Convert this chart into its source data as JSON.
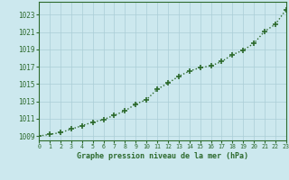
{
  "x": [
    0,
    1,
    2,
    3,
    4,
    5,
    6,
    7,
    8,
    9,
    10,
    11,
    12,
    13,
    14,
    15,
    16,
    17,
    18,
    19,
    20,
    21,
    22,
    23
  ],
  "y": [
    1009.0,
    1009.2,
    1009.4,
    1009.8,
    1010.2,
    1010.6,
    1010.9,
    1011.4,
    1011.9,
    1012.7,
    1013.2,
    1014.4,
    1015.1,
    1015.9,
    1016.5,
    1016.9,
    1017.1,
    1017.6,
    1018.4,
    1018.9,
    1019.7,
    1021.1,
    1021.9,
    1023.6
  ],
  "xlim": [
    0,
    23
  ],
  "ylim": [
    1008.5,
    1024.5
  ],
  "yticks": [
    1009,
    1011,
    1013,
    1015,
    1017,
    1019,
    1021,
    1023
  ],
  "xticks": [
    0,
    1,
    2,
    3,
    4,
    5,
    6,
    7,
    8,
    9,
    10,
    11,
    12,
    13,
    14,
    15,
    16,
    17,
    18,
    19,
    20,
    21,
    22,
    23
  ],
  "xlabel": "Graphe pression niveau de la mer (hPa)",
  "line_color": "#2d6a2d",
  "bg_color": "#cce8ee",
  "grid_color": "#aacdd6",
  "font_color": "#2d6a2d"
}
